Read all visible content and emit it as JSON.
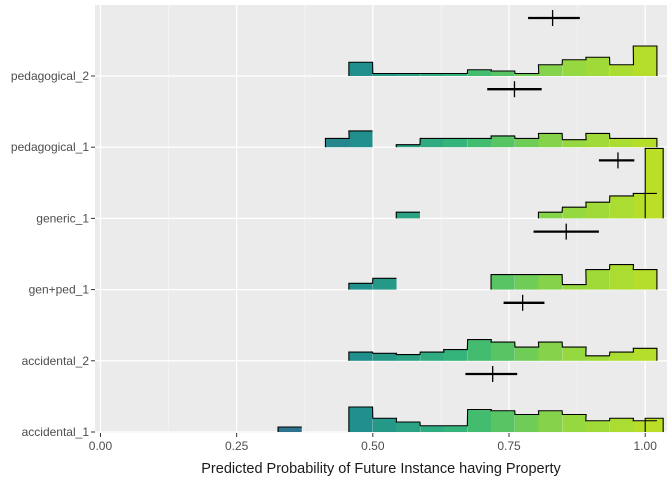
{
  "chart_data": {
    "type": "ridgeline-histogram",
    "xlabel": "Predicted Probability of Future Instance having Property",
    "xlim": [
      -0.01,
      1.04
    ],
    "x_ticks": [
      "0.00",
      "0.25",
      "0.50",
      "0.75",
      "1.00"
    ],
    "x_tick_values": [
      0,
      0.25,
      0.5,
      0.75,
      1.0
    ],
    "bin_width": 0.0435,
    "color_scale": [
      "#31688e",
      "#21908c",
      "#35b779",
      "#8fd744",
      "#bddf26"
    ],
    "grid": true,
    "legend": "none",
    "series": [
      {
        "label": "accidental_1",
        "bins": [
          [
            0.326,
            0.2
          ],
          [
            0.456,
            1.0
          ],
          [
            0.5,
            0.55
          ],
          [
            0.543,
            0.4
          ],
          [
            0.587,
            0.25
          ],
          [
            0.63,
            0.25
          ],
          [
            0.674,
            0.9
          ],
          [
            0.717,
            0.85
          ],
          [
            0.761,
            0.7
          ],
          [
            0.804,
            0.85
          ],
          [
            0.848,
            0.7
          ],
          [
            0.891,
            0.45
          ],
          [
            0.935,
            0.55
          ],
          [
            0.978,
            0.45
          ],
          [
            1.0,
            0.55
          ]
        ],
        "estimate": 0.72,
        "ci": [
          0.67,
          0.765
        ]
      },
      {
        "label": "accidental_2",
        "bins": [
          [
            0.456,
            0.35
          ],
          [
            0.5,
            0.3
          ],
          [
            0.543,
            0.25
          ],
          [
            0.587,
            0.35
          ],
          [
            0.63,
            0.45
          ],
          [
            0.674,
            0.85
          ],
          [
            0.717,
            0.75
          ],
          [
            0.761,
            0.55
          ],
          [
            0.804,
            0.75
          ],
          [
            0.848,
            0.55
          ],
          [
            0.891,
            0.2
          ],
          [
            0.935,
            0.35
          ],
          [
            0.978,
            0.5
          ]
        ],
        "estimate": 0.775,
        "ci": [
          0.74,
          0.815
        ]
      },
      {
        "label": "gen+ped_1",
        "bins": [
          [
            0.456,
            0.25
          ],
          [
            0.5,
            0.45
          ],
          [
            0.717,
            0.6
          ],
          [
            0.761,
            0.6
          ],
          [
            0.804,
            0.6
          ],
          [
            0.848,
            0.2
          ],
          [
            0.891,
            0.8
          ],
          [
            0.935,
            1.0
          ],
          [
            0.978,
            0.8
          ]
        ],
        "estimate": 0.855,
        "ci": [
          0.795,
          0.915
        ]
      },
      {
        "label": "generic_1",
        "bins": [
          [
            0.543,
            0.25
          ],
          [
            0.804,
            0.25
          ],
          [
            0.848,
            0.45
          ],
          [
            0.891,
            0.65
          ],
          [
            0.935,
            0.9
          ],
          [
            0.978,
            1.0
          ],
          [
            1.0,
            2.8
          ]
        ],
        "estimate": 0.95,
        "ci": [
          0.915,
          0.98
        ]
      },
      {
        "label": "pedagogical_1",
        "bins": [
          [
            0.413,
            0.35
          ],
          [
            0.456,
            0.65
          ],
          [
            0.543,
            0.1
          ],
          [
            0.587,
            0.35
          ],
          [
            0.63,
            0.35
          ],
          [
            0.674,
            0.35
          ],
          [
            0.717,
            0.45
          ],
          [
            0.761,
            0.35
          ],
          [
            0.804,
            0.55
          ],
          [
            0.848,
            0.3
          ],
          [
            0.891,
            0.55
          ],
          [
            0.935,
            0.35
          ],
          [
            0.978,
            0.35
          ]
        ],
        "estimate": 0.76,
        "ci": [
          0.71,
          0.81
        ]
      },
      {
        "label": "pedagogical_2",
        "bins": [
          [
            0.456,
            0.55
          ],
          [
            0.5,
            0.1
          ],
          [
            0.543,
            0.1
          ],
          [
            0.587,
            0.1
          ],
          [
            0.63,
            0.1
          ],
          [
            0.674,
            0.25
          ],
          [
            0.717,
            0.2
          ],
          [
            0.761,
            0.1
          ],
          [
            0.804,
            0.45
          ],
          [
            0.848,
            0.65
          ],
          [
            0.891,
            0.75
          ],
          [
            0.935,
            0.45
          ],
          [
            0.978,
            1.2
          ]
        ],
        "estimate": 0.83,
        "ci": [
          0.785,
          0.88
        ]
      }
    ]
  }
}
